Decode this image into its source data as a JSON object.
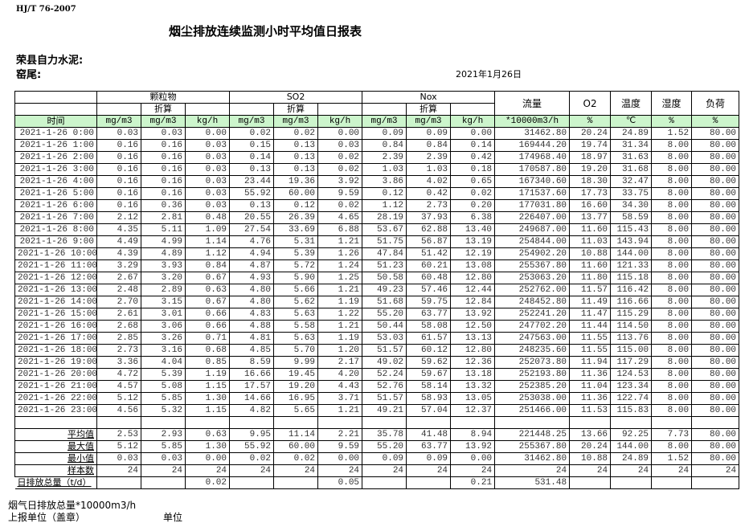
{
  "header": {
    "standard": "HJ/T  76-2007",
    "title": "烟尘排放连续监测小时平均值日报表",
    "company": "荣县自力水泥:",
    "kiln": "窑尾:",
    "date": "2021年1月26日"
  },
  "table": {
    "groups": {
      "particulate": "颗粒物",
      "so2": "SO2",
      "nox": "Nox",
      "flow": "流量",
      "o2": "O2",
      "temp": "温度",
      "humidity": "湿度",
      "load": "负荷"
    },
    "converted": "折算",
    "units": [
      "时间",
      "mg/m3",
      "mg/m3",
      "kg/h",
      "mg/m3",
      "mg/m3",
      "kg/h",
      "mg/m3",
      "mg/m3",
      "kg/h",
      "*10000m3/h",
      "%",
      "℃",
      "%",
      "%"
    ],
    "accent_color": "#ccf5cc",
    "rows": [
      [
        "2021-1-26 0:00",
        "0.03",
        "0.03",
        "0.00",
        "0.02",
        "0.02",
        "0.00",
        "0.09",
        "0.09",
        "0.00",
        "31462.80",
        "20.24",
        "24.89",
        "1.52",
        "80.00"
      ],
      [
        "2021-1-26 1:00",
        "0.16",
        "0.16",
        "0.03",
        "0.15",
        "0.13",
        "0.03",
        "0.84",
        "0.84",
        "0.14",
        "169444.20",
        "19.74",
        "31.34",
        "8.00",
        "80.00"
      ],
      [
        "2021-1-26 2:00",
        "0.16",
        "0.16",
        "0.03",
        "0.14",
        "0.13",
        "0.02",
        "2.39",
        "2.39",
        "0.42",
        "174968.40",
        "18.97",
        "31.63",
        "8.00",
        "80.00"
      ],
      [
        "2021-1-26 3:00",
        "0.16",
        "0.16",
        "0.03",
        "0.13",
        "0.13",
        "0.02",
        "1.03",
        "1.03",
        "0.18",
        "170587.80",
        "19.20",
        "31.68",
        "8.00",
        "80.00"
      ],
      [
        "2021-1-26 4:00",
        "0.16",
        "0.16",
        "0.03",
        "23.44",
        "19.36",
        "3.92",
        "3.86",
        "4.02",
        "0.65",
        "167340.60",
        "18.30",
        "32.47",
        "8.00",
        "80.00"
      ],
      [
        "2021-1-26 5:00",
        "0.16",
        "0.16",
        "0.03",
        "55.92",
        "60.00",
        "9.59",
        "0.12",
        "0.42",
        "0.02",
        "171537.60",
        "17.73",
        "33.75",
        "8.00",
        "80.00"
      ],
      [
        "2021-1-26 6:00",
        "0.16",
        "0.36",
        "0.03",
        "0.13",
        "0.12",
        "0.02",
        "1.12",
        "2.73",
        "0.20",
        "177031.80",
        "16.60",
        "34.30",
        "8.00",
        "80.00"
      ],
      [
        "2021-1-26 7:00",
        "2.12",
        "2.81",
        "0.48",
        "20.55",
        "26.39",
        "4.65",
        "28.19",
        "37.93",
        "6.38",
        "226407.00",
        "13.77",
        "58.59",
        "8.00",
        "80.00"
      ],
      [
        "2021-1-26 8:00",
        "4.35",
        "5.11",
        "1.09",
        "27.54",
        "33.69",
        "6.88",
        "53.67",
        "62.88",
        "13.40",
        "249687.00",
        "11.60",
        "115.43",
        "8.00",
        "80.00"
      ],
      [
        "2021-1-26 9:00",
        "4.49",
        "4.99",
        "1.14",
        "4.76",
        "5.31",
        "1.21",
        "51.75",
        "56.87",
        "13.19",
        "254844.00",
        "11.03",
        "143.94",
        "8.00",
        "80.00"
      ],
      [
        "2021-1-26 10:00",
        "4.39",
        "4.89",
        "1.12",
        "4.94",
        "5.39",
        "1.26",
        "47.84",
        "51.42",
        "12.19",
        "254902.20",
        "10.88",
        "144.00",
        "8.00",
        "80.00"
      ],
      [
        "2021-1-26 11:00",
        "3.29",
        "3.93",
        "0.84",
        "4.87",
        "5.72",
        "1.24",
        "51.23",
        "60.21",
        "13.08",
        "255367.80",
        "11.60",
        "121.33",
        "8.00",
        "80.00"
      ],
      [
        "2021-1-26 12:00",
        "2.67",
        "3.20",
        "0.67",
        "4.93",
        "5.90",
        "1.25",
        "50.58",
        "60.48",
        "12.80",
        "253063.20",
        "11.80",
        "115.18",
        "8.00",
        "80.00"
      ],
      [
        "2021-1-26 13:00",
        "2.48",
        "2.89",
        "0.63",
        "4.80",
        "5.66",
        "1.21",
        "49.23",
        "57.46",
        "12.44",
        "252762.00",
        "11.57",
        "116.42",
        "8.00",
        "80.00"
      ],
      [
        "2021-1-26 14:00",
        "2.70",
        "3.15",
        "0.67",
        "4.80",
        "5.62",
        "1.19",
        "51.68",
        "59.75",
        "12.84",
        "248452.80",
        "11.49",
        "116.66",
        "8.00",
        "80.00"
      ],
      [
        "2021-1-26 15:00",
        "2.61",
        "3.01",
        "0.66",
        "4.83",
        "5.63",
        "1.22",
        "55.20",
        "63.77",
        "13.92",
        "252241.20",
        "11.47",
        "115.29",
        "8.00",
        "80.00"
      ],
      [
        "2021-1-26 16:00",
        "2.68",
        "3.06",
        "0.66",
        "4.88",
        "5.58",
        "1.21",
        "50.44",
        "58.08",
        "12.50",
        "247702.20",
        "11.44",
        "114.50",
        "8.00",
        "80.00"
      ],
      [
        "2021-1-26 17:00",
        "2.85",
        "3.26",
        "0.71",
        "4.81",
        "5.63",
        "1.19",
        "53.03",
        "61.57",
        "13.13",
        "247563.00",
        "11.55",
        "113.76",
        "8.00",
        "80.00"
      ],
      [
        "2021-1-26 18:00",
        "2.73",
        "3.16",
        "0.68",
        "4.85",
        "5.70",
        "1.20",
        "51.57",
        "60.12",
        "12.80",
        "248235.60",
        "11.55",
        "115.00",
        "8.00",
        "80.00"
      ],
      [
        "2021-1-26 19:00",
        "3.36",
        "4.04",
        "0.85",
        "8.59",
        "9.99",
        "2.17",
        "49.02",
        "59.62",
        "12.36",
        "252073.80",
        "11.94",
        "117.29",
        "8.00",
        "80.00"
      ],
      [
        "2021-1-26 20:00",
        "4.72",
        "5.39",
        "1.19",
        "16.66",
        "19.45",
        "4.20",
        "52.24",
        "59.67",
        "13.18",
        "252193.80",
        "11.36",
        "124.53",
        "8.00",
        "80.00"
      ],
      [
        "2021-1-26 21:00",
        "4.57",
        "5.08",
        "1.15",
        "17.57",
        "19.20",
        "4.43",
        "52.76",
        "58.14",
        "13.32",
        "252385.20",
        "11.04",
        "123.34",
        "8.00",
        "80.00"
      ],
      [
        "2021-1-26 22:00",
        "5.12",
        "5.85",
        "1.30",
        "14.66",
        "16.95",
        "3.71",
        "51.57",
        "58.93",
        "13.05",
        "253038.00",
        "11.36",
        "122.74",
        "8.00",
        "80.00"
      ],
      [
        "2021-1-26 23:00",
        "4.56",
        "5.32",
        "1.15",
        "4.82",
        "5.65",
        "1.21",
        "49.21",
        "57.04",
        "12.37",
        "251466.00",
        "11.53",
        "115.83",
        "8.00",
        "80.00"
      ]
    ],
    "summary": [
      [
        "平均值",
        "2.53",
        "2.93",
        "0.63",
        "9.95",
        "11.14",
        "2.21",
        "35.78",
        "41.48",
        "8.94",
        "221448.25",
        "13.66",
        "92.25",
        "7.73",
        "80.00"
      ],
      [
        "最大值",
        "5.12",
        "5.85",
        "1.30",
        "55.92",
        "60.00",
        "9.59",
        "55.20",
        "63.77",
        "13.92",
        "255367.80",
        "20.24",
        "144.00",
        "8.00",
        "80.00"
      ],
      [
        "最小值",
        "0.03",
        "0.03",
        "0.00",
        "0.02",
        "0.02",
        "0.00",
        "0.09",
        "0.09",
        "0.00",
        "31462.80",
        "10.88",
        "24.89",
        "1.52",
        "80.00"
      ],
      [
        "样本数",
        "24",
        "24",
        "24",
        "24",
        "24",
        "24",
        "24",
        "24",
        "24",
        "24",
        "24",
        "24",
        "24",
        "24"
      ]
    ],
    "daily_total": [
      "日排放总量（t/d）",
      "",
      "",
      "0.02",
      "",
      "",
      "0.05",
      "",
      "",
      "0.21",
      "531.48",
      "",
      "",
      "",
      ""
    ]
  },
  "footer": {
    "flue_total": "烟气日排放总量*10000m3/h",
    "reporter": "上报单位（盖章）",
    "unit": "单位"
  }
}
